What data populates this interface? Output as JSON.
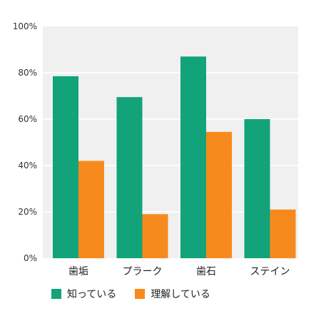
{
  "chart_data": {
    "type": "bar",
    "categories": [
      "歯垢",
      "プラーク",
      "歯石",
      "ステイン"
    ],
    "series": [
      {
        "name": "知っている",
        "values": [
          78.5,
          69.5,
          87,
          60
        ],
        "color": "#12a37b"
      },
      {
        "name": "理解している",
        "values": [
          42,
          19,
          54.5,
          21
        ],
        "color": "#f78a1c"
      }
    ],
    "ylim": [
      0,
      100
    ],
    "yticks": [
      "0%",
      "20%",
      "40%",
      "60%",
      "80%",
      "100%"
    ],
    "grid": true,
    "legend_position": "bottom-left",
    "plot_background": "#f0f0f0"
  }
}
